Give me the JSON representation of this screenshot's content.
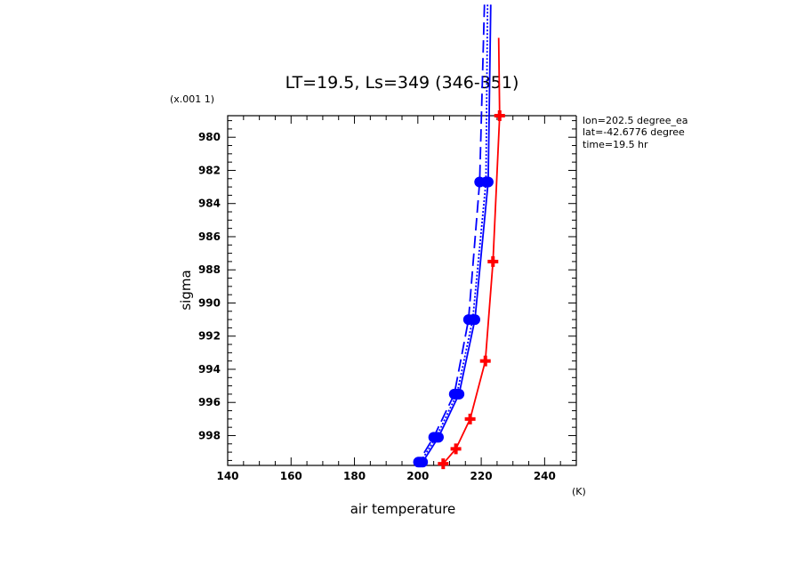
{
  "chart_data": {
    "type": "line",
    "title": "LT=19.5, Ls=349 (346-351)",
    "xlabel": "air temperature",
    "ylabel": "sigma",
    "x_unit": "(K)",
    "y_scale_label": "(x.001 1)",
    "xlim": [
      140,
      250
    ],
    "ylim": [
      999.8,
      978.7
    ],
    "y_inverted": true,
    "x_ticks": [
      140,
      160,
      180,
      200,
      220,
      240
    ],
    "y_ticks": [
      980,
      982,
      984,
      986,
      988,
      990,
      992,
      994,
      996,
      998
    ],
    "grid": false,
    "annotations": [
      "lon=202.5 degree_ea",
      "lat=-42.6776 degree",
      "time=19.5 hr"
    ],
    "series": [
      {
        "color": "#ff0000",
        "dash": "solid",
        "marker": "cross",
        "points": [
          [
            225.8,
            978.7
          ],
          [
            223.7,
            987.5
          ],
          [
            221.3,
            993.5
          ],
          [
            216.5,
            997.0
          ],
          [
            212.0,
            998.8
          ],
          [
            208.0,
            999.7
          ]
        ],
        "extend_top": [
          225.5,
          974.0
        ]
      },
      {
        "color": "#0000ff",
        "dash": "solid",
        "marker": "circle",
        "points": [
          [
            222.2,
            982.7
          ],
          [
            218.0,
            991.0
          ],
          [
            213.0,
            995.5
          ],
          [
            206.5,
            998.1
          ],
          [
            201.5,
            999.6
          ]
        ],
        "extend_top": [
          223.0,
          972.0
        ]
      },
      {
        "color": "#0000ff",
        "dash": "dotted",
        "marker": "circle",
        "points": [
          [
            221.5,
            982.7
          ],
          [
            217.3,
            991.0
          ],
          [
            212.3,
            995.5
          ],
          [
            205.8,
            998.1
          ],
          [
            200.8,
            999.6
          ]
        ],
        "extend_top": [
          222.0,
          972.0
        ]
      },
      {
        "color": "#0000ff",
        "dash": "dashed",
        "marker": "circle",
        "points": [
          [
            219.5,
            982.7
          ],
          [
            216.0,
            991.0
          ],
          [
            211.5,
            995.5
          ],
          [
            205.0,
            998.1
          ],
          [
            200.2,
            999.6
          ]
        ],
        "extend_top": [
          221.0,
          972.0
        ]
      }
    ]
  }
}
